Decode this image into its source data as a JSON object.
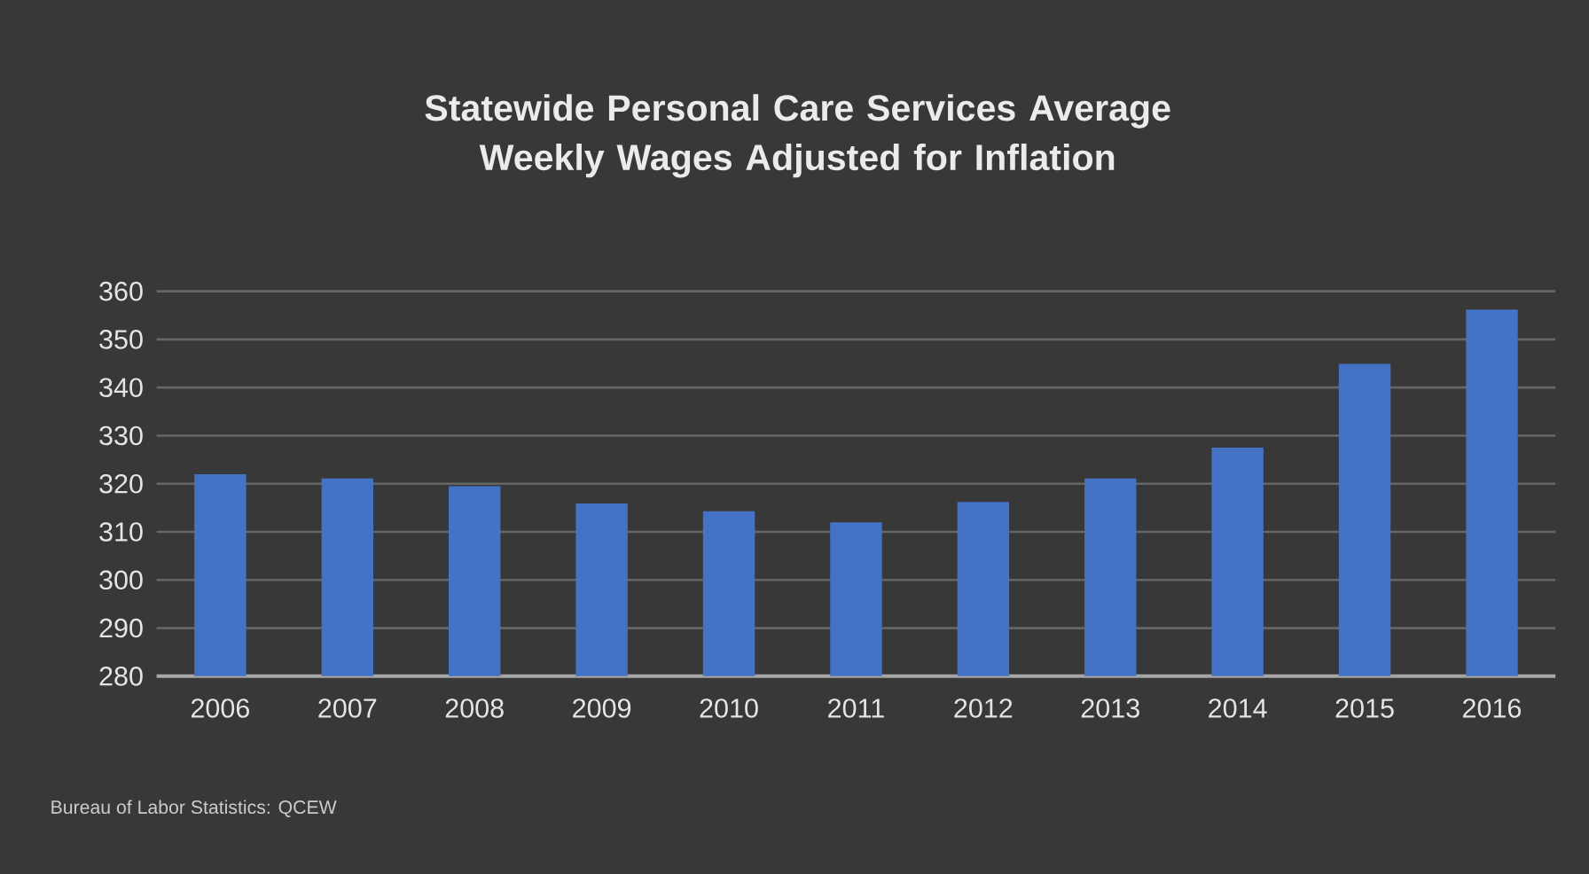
{
  "chart_data": {
    "type": "bar",
    "title": "Statewide Personal Care Services Average Weekly Wages Adjusted for Inflation",
    "categories": [
      "2006",
      "2007",
      "2008",
      "2009",
      "2010",
      "2011",
      "2012",
      "2013",
      "2014",
      "2015",
      "2016"
    ],
    "values": [
      322.0,
      321.1,
      319.5,
      315.9,
      314.3,
      312.0,
      316.2,
      321.1,
      327.5,
      344.9,
      356.2
    ],
    "color": "#4472c4",
    "ylim": [
      280,
      360
    ],
    "yticks": [
      280,
      290,
      300,
      310,
      320,
      330,
      340,
      350,
      360
    ],
    "grid": "y",
    "annotations": [
      "Bureau of Labor Statistics: QCEW"
    ]
  }
}
